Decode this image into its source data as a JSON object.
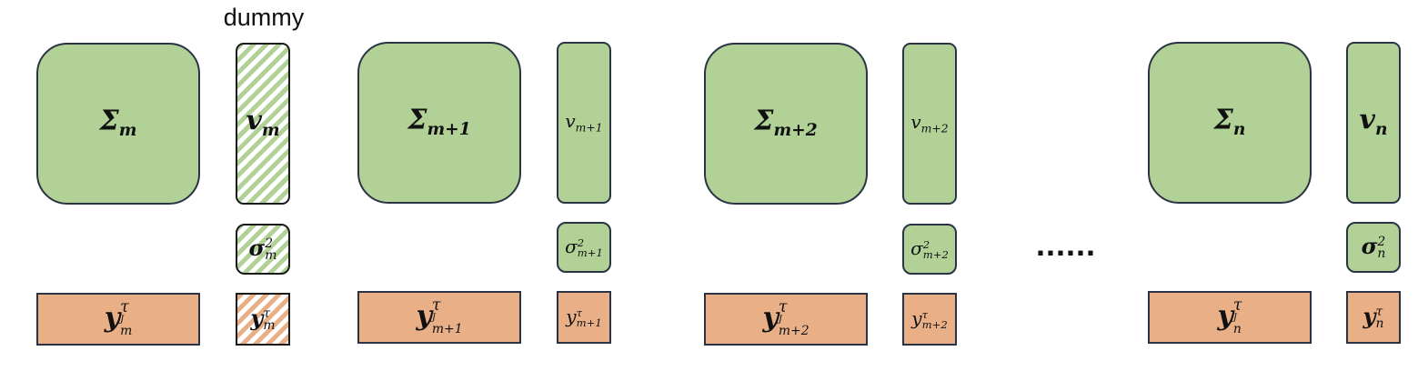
{
  "dummy_label": "dummy",
  "ellipsis": "......",
  "colors": {
    "green_fill": "#b1d197",
    "orange_fill": "#e9b088",
    "border": "#2a3445"
  },
  "groups": [
    {
      "id": "m",
      "sigma": "Σ",
      "sigma_sub": "m",
      "v": "v",
      "v_sub": "m",
      "var": "σ",
      "var_sup": "2",
      "var_sub": "m",
      "yJ": "y",
      "yJ_sup": "τ",
      "yJ_sub": "J",
      "yJ_subsub": "m",
      "y": "y",
      "y_sup": "τ",
      "y_sub": "m"
    },
    {
      "id": "m+1",
      "sigma": "Σ",
      "sigma_sub": "m+1",
      "v": "v",
      "v_sub": "m+1",
      "var": "σ",
      "var_sup": "2",
      "var_sub": "m+1",
      "yJ": "y",
      "yJ_sup": "τ",
      "yJ_sub": "J",
      "yJ_subsub": "m+1",
      "y": "y",
      "y_sup": "τ",
      "y_sub": "m+1"
    },
    {
      "id": "m+2",
      "sigma": "Σ",
      "sigma_sub": "m+2",
      "v": "v",
      "v_sub": "m+2",
      "var": "σ",
      "var_sup": "2",
      "var_sub": "m+2",
      "yJ": "y",
      "yJ_sup": "τ",
      "yJ_sub": "J",
      "yJ_subsub": "m+2",
      "y": "y",
      "y_sup": "τ",
      "y_sub": "m+2"
    },
    {
      "id": "n",
      "sigma": "Σ",
      "sigma_sub": "n",
      "v": "v",
      "v_sub": "n",
      "var": "σ",
      "var_sup": "2",
      "var_sub": "n",
      "yJ": "y",
      "yJ_sup": "τ",
      "yJ_sub": "J",
      "yJ_subsub": "n",
      "y": "y",
      "y_sup": "τ",
      "y_sub": "n"
    }
  ]
}
